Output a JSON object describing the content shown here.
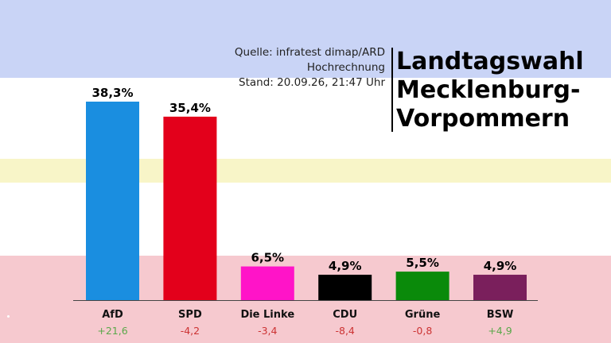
{
  "source": {
    "line1": "Quelle: infratest dimap/ARD",
    "line2": "Hochrechnung",
    "line3": "Stand: 20.09.26, 21:47 Uhr"
  },
  "title": {
    "line1": "Landtagswahl",
    "line2": "Mecklenburg-",
    "line3": "Vorpommern"
  },
  "colors": {
    "band_top": "#c9d4f6",
    "band_yellow": "#f8f5c8",
    "band_bottom": "#f6c9cf",
    "positive": "#5aa84a",
    "negative": "#cc3333"
  },
  "chart_data": {
    "type": "bar",
    "categories": [
      "AfD",
      "SPD",
      "Die Linke",
      "CDU",
      "Grüne",
      "BSW"
    ],
    "values": [
      38.3,
      35.4,
      6.5,
      4.9,
      5.5,
      4.9
    ],
    "value_labels": [
      "38,3%",
      "35,4%",
      "6,5%",
      "4,9%",
      "5,5%",
      "4,9%"
    ],
    "changes": [
      "+21,6",
      "-4,2",
      "-3,4",
      "-8,4",
      "-0,8",
      "+4,9"
    ],
    "change_signs": [
      "positive",
      "negative",
      "negative",
      "negative",
      "negative",
      "positive"
    ],
    "bar_colors": [
      "#1a8ee0",
      "#e3001b",
      "#ff14c8",
      "#000000",
      "#0a8a0a",
      "#7a1f5c"
    ],
    "ylim": [
      0,
      38.3
    ]
  }
}
